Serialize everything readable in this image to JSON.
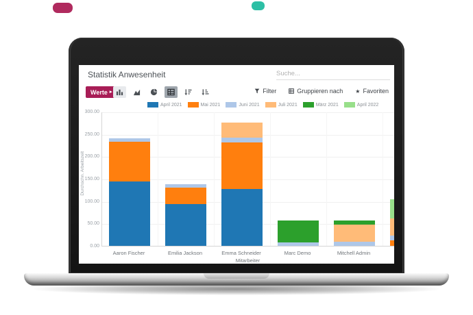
{
  "decor": {
    "pill_magenta_color": "#b02a5e",
    "pill_teal_color": "#2dbfa5"
  },
  "app": {
    "accent_color": "#a81d56",
    "header": {
      "title": "Statistik Anwesenheit",
      "search_placeholder": "Suche..."
    },
    "toolbar": {
      "measures_button": "Werte",
      "view_icons": [
        "bar-chart",
        "area-chart",
        "pie-chart",
        "table",
        "sort-descending",
        "sort-ascending"
      ],
      "filter": "Filter",
      "group_by": "Gruppieren nach",
      "favorites": "Favoriten"
    },
    "icons": {
      "caret": "▸",
      "star": "★"
    }
  },
  "chart_data": {
    "type": "bar",
    "stacked": true,
    "title": "",
    "xlabel": "Mitarbeiter",
    "ylabel": "Durchschn. Arbeitszeit",
    "ylim": [
      0,
      300
    ],
    "ytick_labels": [
      "0.00",
      "50.00",
      "100.00",
      "150.00",
      "200.00",
      "250.00",
      "300.00"
    ],
    "grid": true,
    "legend_position": "top",
    "categories": [
      "Aaron Fischer",
      "Emilia Jackson",
      "Emma Schneider",
      "Marc Demo",
      "Mitchell Admin",
      ""
    ],
    "series": [
      {
        "name": "April 2021",
        "color": "#1f77b4",
        "values": [
          144,
          93,
          127,
          0,
          0,
          0
        ]
      },
      {
        "name": "Mai 2021",
        "color": "#ff7f0e",
        "values": [
          88,
          37,
          104,
          0,
          0,
          12
        ]
      },
      {
        "name": "Juni 2021",
        "color": "#aec7e8",
        "values": [
          8,
          8,
          11,
          8,
          9,
          11
        ]
      },
      {
        "name": "Juli 2021",
        "color": "#ffbb78",
        "values": [
          0,
          0,
          33,
          0,
          38,
          38
        ]
      },
      {
        "name": "März 2021",
        "color": "#2ca02c",
        "values": [
          0,
          0,
          0,
          49,
          9,
          0
        ]
      },
      {
        "name": "April 2022",
        "color": "#98df8a",
        "values": [
          0,
          0,
          0,
          0,
          0,
          43
        ]
      }
    ]
  }
}
